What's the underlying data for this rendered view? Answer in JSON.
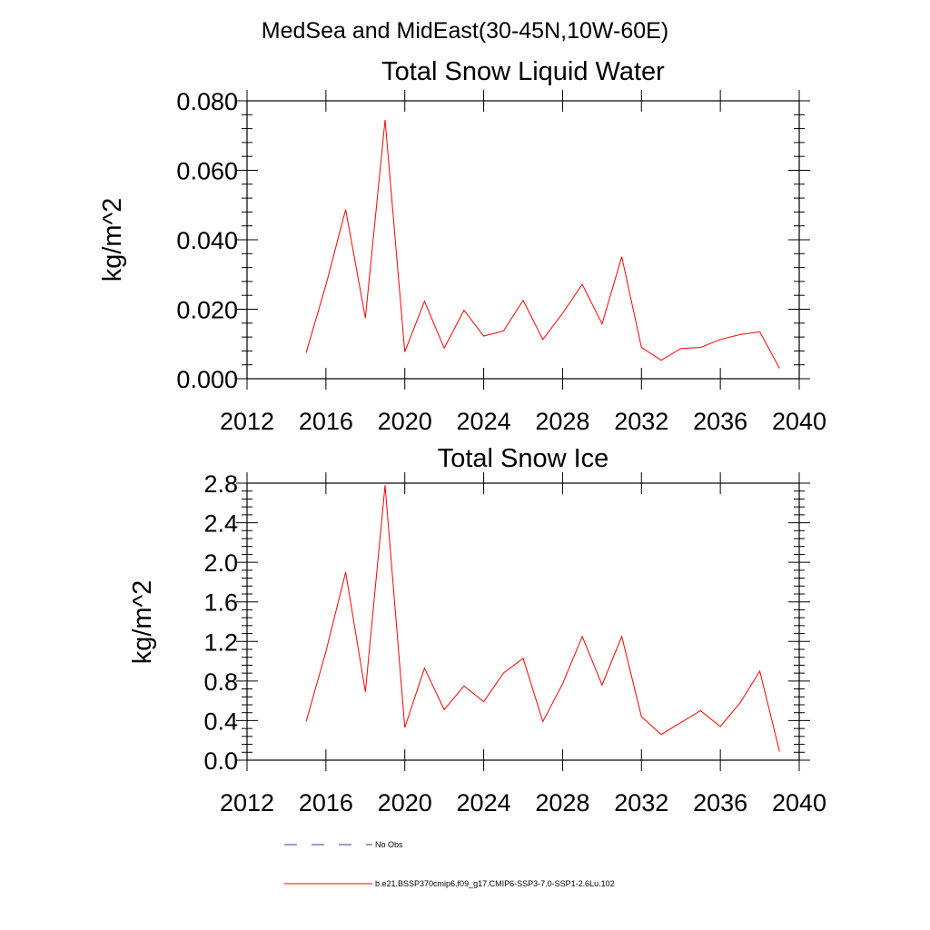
{
  "figure_title": "MedSea and MidEast(30-45N,10W-60E)",
  "colors": {
    "model_series": "#ff0000",
    "obs_series": "#3b3ba0",
    "axes": "#000000",
    "background": "#ffffff"
  },
  "legend": [
    {
      "label": "No Obs",
      "style": "dashed",
      "color": "#3b3ba0"
    },
    {
      "label": "b.e21.BSSP370cmip6.f09_g17.CMIP6-SSP3-7.0-SSP1-2.6Lu.102",
      "style": "solid",
      "color": "#ff0000"
    }
  ],
  "chart_data": [
    {
      "type": "line",
      "title": "Total Snow Liquid Water",
      "xlabel": "",
      "ylabel": "kg/m^2",
      "xlim": [
        2012,
        2040
      ],
      "ylim": [
        0,
        0.08
      ],
      "x_ticks": [
        "2012",
        "2016",
        "2020",
        "2024",
        "2028",
        "2032",
        "2036",
        "2040"
      ],
      "y_ticks": [
        "0.000",
        "0.020",
        "0.040",
        "0.060",
        "0.080"
      ],
      "x": [
        2015,
        2016,
        2017,
        2018,
        2019,
        2020,
        2021,
        2022,
        2023,
        2024,
        2025,
        2026,
        2027,
        2028,
        2029,
        2030,
        2031,
        2032,
        2033,
        2034,
        2035,
        2036,
        2037,
        2038,
        2039
      ],
      "series": [
        {
          "name": "b.e21.BSSP370cmip6.f09_g17.CMIP6-SSP3-7.0-SSP1-2.6Lu.102",
          "color": "#ff0000",
          "values": [
            0.0075,
            0.027,
            0.0487,
            0.0175,
            0.0745,
            0.0077,
            0.0223,
            0.0088,
            0.0197,
            0.0123,
            0.0137,
            0.0226,
            0.0113,
            0.0188,
            0.0272,
            0.0158,
            0.0351,
            0.009,
            0.0053,
            0.0087,
            0.009,
            0.0113,
            0.0127,
            0.0135,
            0.003
          ]
        }
      ],
      "grid": false
    },
    {
      "type": "line",
      "title": "Total Snow Ice",
      "xlabel": "",
      "ylabel": "kg/m^2",
      "xlim": [
        2012,
        2040
      ],
      "ylim": [
        0,
        2.8
      ],
      "x_ticks": [
        "2012",
        "2016",
        "2020",
        "2024",
        "2028",
        "2032",
        "2036",
        "2040"
      ],
      "y_ticks": [
        "0.0",
        "0.4",
        "0.8",
        "1.2",
        "1.6",
        "2.0",
        "2.4",
        "2.8"
      ],
      "x": [
        2015,
        2016,
        2017,
        2018,
        2019,
        2020,
        2021,
        2022,
        2023,
        2024,
        2025,
        2026,
        2027,
        2028,
        2029,
        2030,
        2031,
        2032,
        2033,
        2034,
        2035,
        2036,
        2037,
        2038,
        2039
      ],
      "series": [
        {
          "name": "b.e21.BSSP370cmip6.f09_g17.CMIP6-SSP3-7.0-SSP1-2.6Lu.102",
          "color": "#ff0000",
          "values": [
            0.39,
            1.1,
            1.9,
            0.69,
            2.78,
            0.33,
            0.93,
            0.51,
            0.75,
            0.59,
            0.88,
            1.03,
            0.39,
            0.77,
            1.25,
            0.76,
            1.25,
            0.44,
            0.26,
            0.38,
            0.5,
            0.34,
            0.58,
            0.9,
            0.09
          ]
        }
      ],
      "grid": false
    }
  ]
}
